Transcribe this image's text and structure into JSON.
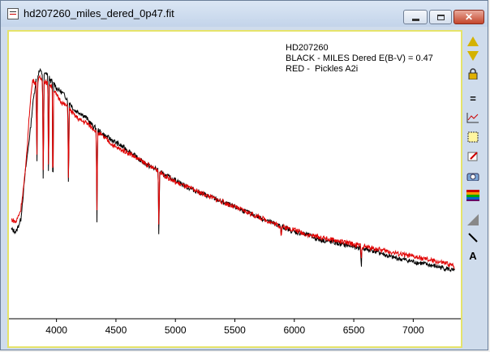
{
  "window": {
    "title": "hd207260_miles_dered_0p47.fit"
  },
  "legend": {
    "line1": "HD207260",
    "line2": "BLACK - MILES Dered E(B-V) = 0.47",
    "line3": "RED -  Pickles A2i"
  },
  "toolbar": {
    "items": [
      "arrow-up-icon",
      "arrow-down-icon",
      "lock-icon",
      "equals-icon",
      "graph-icon",
      "select-box-icon",
      "pen-icon",
      "camera-icon",
      "rainbow-icon",
      "gradient-icon",
      "line-icon",
      "text-icon"
    ],
    "labels": {
      "equals": "=",
      "text": "A"
    }
  },
  "colors": {
    "black_spectrum": "#000000",
    "red_spectrum": "#e00000",
    "frame": "#e6e46a",
    "titlebar": "#cfdcec"
  },
  "chart_data": {
    "type": "line",
    "title": "",
    "xlabel": "",
    "ylabel": "",
    "xlim": [
      3600,
      7400
    ],
    "ylim": [
      0,
      1.0
    ],
    "x_ticks": [
      4000,
      4500,
      5000,
      5500,
      6000,
      6500,
      7000
    ],
    "grid": false,
    "legend_placement": "top-right",
    "series": [
      {
        "color": "black",
        "x": [
          3620,
          3660,
          3700,
          3720,
          3740,
          3760,
          3780,
          3800,
          3830,
          3860,
          3890,
          3920,
          3950,
          3980,
          4000,
          4050,
          4100,
          4150,
          4200,
          4250,
          4300,
          4350,
          4400,
          4500,
          4600,
          4700,
          4800,
          4850,
          4900,
          5000,
          5100,
          5200,
          5300,
          5400,
          5500,
          5600,
          5700,
          5800,
          5900,
          6000,
          6100,
          6200,
          6300,
          6400,
          6500,
          6600,
          6700,
          6800,
          6900,
          7000,
          7100,
          7200,
          7300,
          7350
        ],
        "y": [
          0.36,
          0.35,
          0.4,
          0.5,
          0.6,
          0.68,
          0.76,
          0.86,
          0.97,
          1.0,
          0.98,
          0.99,
          0.96,
          0.95,
          0.93,
          0.91,
          0.88,
          0.84,
          0.83,
          0.81,
          0.78,
          0.76,
          0.74,
          0.71,
          0.68,
          0.64,
          0.61,
          0.6,
          0.58,
          0.56,
          0.53,
          0.51,
          0.49,
          0.47,
          0.45,
          0.43,
          0.41,
          0.39,
          0.37,
          0.35,
          0.34,
          0.32,
          0.31,
          0.3,
          0.29,
          0.28,
          0.27,
          0.25,
          0.24,
          0.23,
          0.22,
          0.21,
          0.2,
          0.19
        ]
      },
      {
        "color": "red",
        "x": [
          3620,
          3660,
          3700,
          3720,
          3740,
          3760,
          3780,
          3800,
          3830,
          3860,
          3890,
          3920,
          3950,
          3980,
          4000,
          4050,
          4100,
          4150,
          4200,
          4250,
          4300,
          4350,
          4400,
          4500,
          4600,
          4700,
          4800,
          4850,
          4900,
          5000,
          5100,
          5200,
          5300,
          5400,
          5500,
          5600,
          5700,
          5800,
          5900,
          6000,
          6100,
          6200,
          6300,
          6400,
          6500,
          6600,
          6700,
          6800,
          6900,
          7000,
          7100,
          7200,
          7300,
          7350
        ],
        "y": [
          0.4,
          0.39,
          0.44,
          0.52,
          0.6,
          0.74,
          0.88,
          0.96,
          0.95,
          0.97,
          0.96,
          0.95,
          0.94,
          0.92,
          0.9,
          0.87,
          0.85,
          0.82,
          0.8,
          0.79,
          0.77,
          0.75,
          0.73,
          0.69,
          0.67,
          0.64,
          0.61,
          0.6,
          0.58,
          0.55,
          0.53,
          0.51,
          0.49,
          0.47,
          0.45,
          0.43,
          0.41,
          0.39,
          0.37,
          0.36,
          0.34,
          0.33,
          0.32,
          0.31,
          0.3,
          0.29,
          0.28,
          0.27,
          0.26,
          0.25,
          0.24,
          0.23,
          0.22,
          0.21
        ]
      }
    ],
    "absorption_lines": [
      {
        "x": 3835,
        "depth": 0.4
      },
      {
        "x": 3889,
        "depth": 0.5
      },
      {
        "x": 3933,
        "depth": 0.45
      },
      {
        "x": 3970,
        "depth": 0.55
      },
      {
        "x": 4101,
        "depth": 0.4
      },
      {
        "x": 4340,
        "depth": 0.38
      },
      {
        "x": 4861,
        "depth": 0.3
      },
      {
        "x": 5890,
        "depth": 0.05
      },
      {
        "x": 6563,
        "depth": 0.08
      }
    ]
  }
}
